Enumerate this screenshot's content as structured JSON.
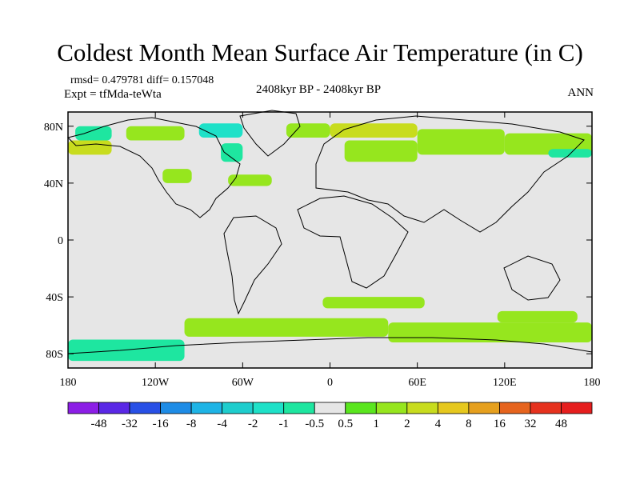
{
  "chart_data": {
    "type": "heatmap",
    "title": "Coldest Month Mean Surface Air Temperature (in C)",
    "stats_text": "rmsd= 0.479781  diff= 0.157048",
    "experiment_text": "Expt = tfMda-teWta",
    "period_text": "2408kyr BP - 2408kyr BP",
    "season_text": "ANN",
    "x_tick_labels": [
      "180",
      "120W",
      "60W",
      "0",
      "60E",
      "120E",
      "180"
    ],
    "y_tick_labels": [
      "80N",
      "40N",
      "0",
      "40S",
      "80S"
    ],
    "x_ticks": [
      -180,
      -120,
      -60,
      0,
      60,
      120,
      180
    ],
    "y_ticks": [
      80,
      40,
      0,
      -40,
      -80
    ],
    "xlim": [
      -180,
      180
    ],
    "ylim": [
      -90,
      90
    ],
    "colorbar": {
      "bounds": [
        "-48",
        "-32",
        "-16",
        "-8",
        "-4",
        "-2",
        "-1",
        "-0.5",
        "0.5",
        "1",
        "2",
        "4",
        "8",
        "16",
        "32",
        "48"
      ],
      "colors": [
        "#8c1ee6",
        "#5a28e6",
        "#2850e6",
        "#1e8ce6",
        "#1eb4e6",
        "#1ecdcd",
        "#1ee1c8",
        "#1ee6a0",
        "#e6e6e6",
        "#5ae61e",
        "#96e61e",
        "#c8dc1e",
        "#e6c81e",
        "#e6a01e",
        "#e6641e",
        "#e6321e",
        "#e61e1e"
      ]
    },
    "anomaly_regions": [
      {
        "lon": [
          -180,
          -150
        ],
        "lat": [
          60,
          70
        ],
        "bin": 11
      },
      {
        "lon": [
          -175,
          -150
        ],
        "lat": [
          70,
          80
        ],
        "bin": 7
      },
      {
        "lon": [
          -140,
          -100
        ],
        "lat": [
          70,
          80
        ],
        "bin": 10
      },
      {
        "lon": [
          -90,
          -60
        ],
        "lat": [
          72,
          82
        ],
        "bin": 6
      },
      {
        "lon": [
          -75,
          -60
        ],
        "lat": [
          55,
          68
        ],
        "bin": 7
      },
      {
        "lon": [
          -115,
          -95
        ],
        "lat": [
          40,
          50
        ],
        "bin": 10
      },
      {
        "lon": [
          -70,
          -40
        ],
        "lat": [
          38,
          46
        ],
        "bin": 10
      },
      {
        "lon": [
          -30,
          0
        ],
        "lat": [
          72,
          82
        ],
        "bin": 10
      },
      {
        "lon": [
          0,
          60
        ],
        "lat": [
          72,
          82
        ],
        "bin": 11
      },
      {
        "lon": [
          10,
          60
        ],
        "lat": [
          55,
          70
        ],
        "bin": 10
      },
      {
        "lon": [
          60,
          120
        ],
        "lat": [
          60,
          78
        ],
        "bin": 10
      },
      {
        "lon": [
          120,
          180
        ],
        "lat": [
          60,
          75
        ],
        "bin": 10
      },
      {
        "lon": [
          150,
          180
        ],
        "lat": [
          58,
          64
        ],
        "bin": 7
      },
      {
        "lon": [
          -180,
          -100
        ],
        "lat": [
          -70,
          -85
        ],
        "bin": 7
      },
      {
        "lon": [
          -100,
          40
        ],
        "lat": [
          -55,
          -68
        ],
        "bin": 10
      },
      {
        "lon": [
          40,
          180
        ],
        "lat": [
          -58,
          -72
        ],
        "bin": 10
      },
      {
        "lon": [
          -5,
          65
        ],
        "lat": [
          -40,
          -48
        ],
        "bin": 10
      },
      {
        "lon": [
          115,
          170
        ],
        "lat": [
          -50,
          -58
        ],
        "bin": 10
      }
    ]
  }
}
